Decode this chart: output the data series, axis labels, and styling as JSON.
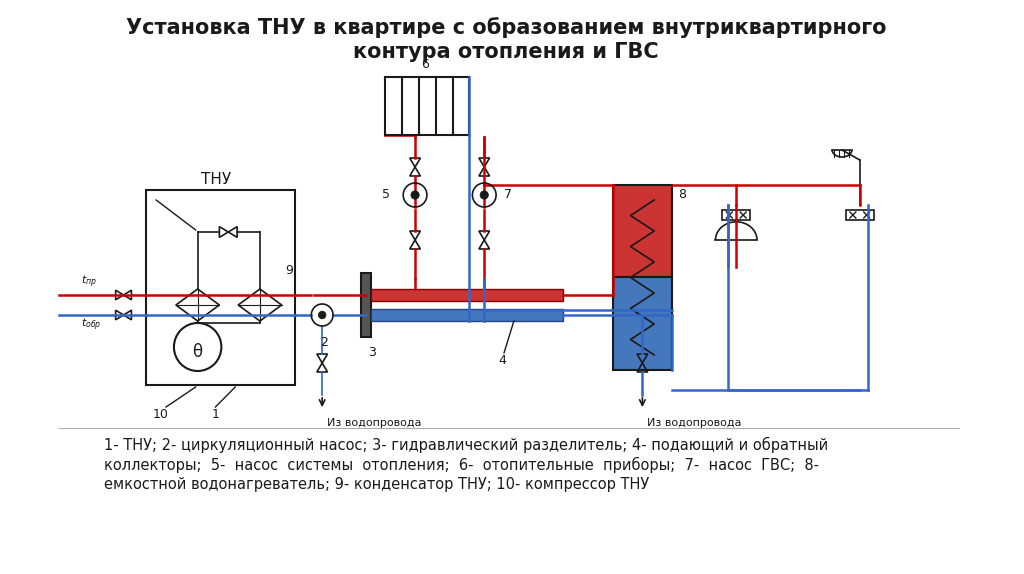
{
  "title_line1": "Установка ТНУ в квартире с образованием внутриквартирного",
  "title_line2": "контура отопления и ГВС",
  "title_fontsize": 15,
  "caption_line1": "1- ТНУ; 2- циркуляционный насос; 3- гидравлический разделитель; 4- подающий и обратный",
  "caption_line2": "коллекторы;  5-  насос  системы  отопления;  6-  отопительные  приборы;  7-  насос  ГВС;  8-",
  "caption_line3": "емкостной водонагреватель; 9- конденсатор ТНУ; 10- компрессор ТНУ",
  "caption_fontsize": 10.5,
  "bg_color": "#ffffff",
  "red_color": "#cc0000",
  "blue_color": "#3366cc",
  "black_color": "#1a1a1a",
  "boiler_red": "#cc3333",
  "boiler_blue": "#4477bb"
}
